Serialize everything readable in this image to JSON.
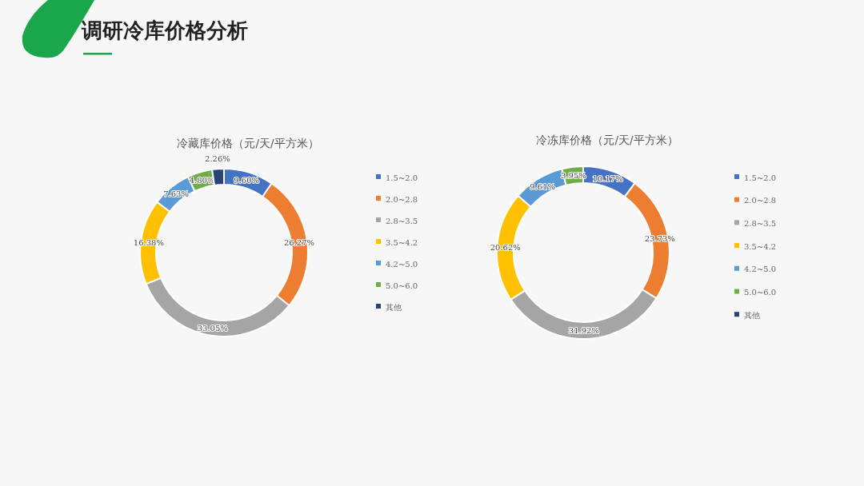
{
  "chart_data": [
    {
      "type": "other",
      "title": "调研冷库价格分析"
    },
    {
      "type": "donut",
      "title": "冷藏库价格（元/天/平方米）",
      "legend": "right",
      "categories": [
        "1.5~2.0",
        "2.0~2.8",
        "2.8~3.5",
        "3.5~4.2",
        "4.2~5.0",
        "5.0~6.0",
        "其他"
      ],
      "values": [
        9.6,
        26.27,
        33.05,
        16.38,
        7.63,
        4.8,
        2.26
      ],
      "value_labels": [
        "9.60%",
        "26.27%",
        "33.05%",
        "16.38%",
        "7.63%",
        "4.80%",
        "2.26%"
      ],
      "colors": [
        "#4472c4",
        "#ed7d31",
        "#a5a5a5",
        "#ffc000",
        "#5b9bd5",
        "#70ad47",
        "#264478"
      ]
    },
    {
      "type": "donut",
      "title": "冷冻库价格（元/天/平方米）",
      "legend": "right",
      "categories": [
        "1.5~2.0",
        "2.0~2.8",
        "2.8~3.5",
        "3.5~4.2",
        "4.2~5.0",
        "5.0~6.0",
        "其他"
      ],
      "values": [
        10.17,
        23.73,
        31.92,
        20.62,
        9.61,
        3.95,
        0
      ],
      "value_labels": [
        "10.17%",
        "23.73%",
        "31.92%",
        "20.62%",
        "9.61%",
        "3.95%",
        null
      ],
      "colors": [
        "#4472c4",
        "#ed7d31",
        "#a5a5a5",
        "#ffc000",
        "#5b9bd5",
        "#70ad47",
        "#264478"
      ]
    }
  ]
}
